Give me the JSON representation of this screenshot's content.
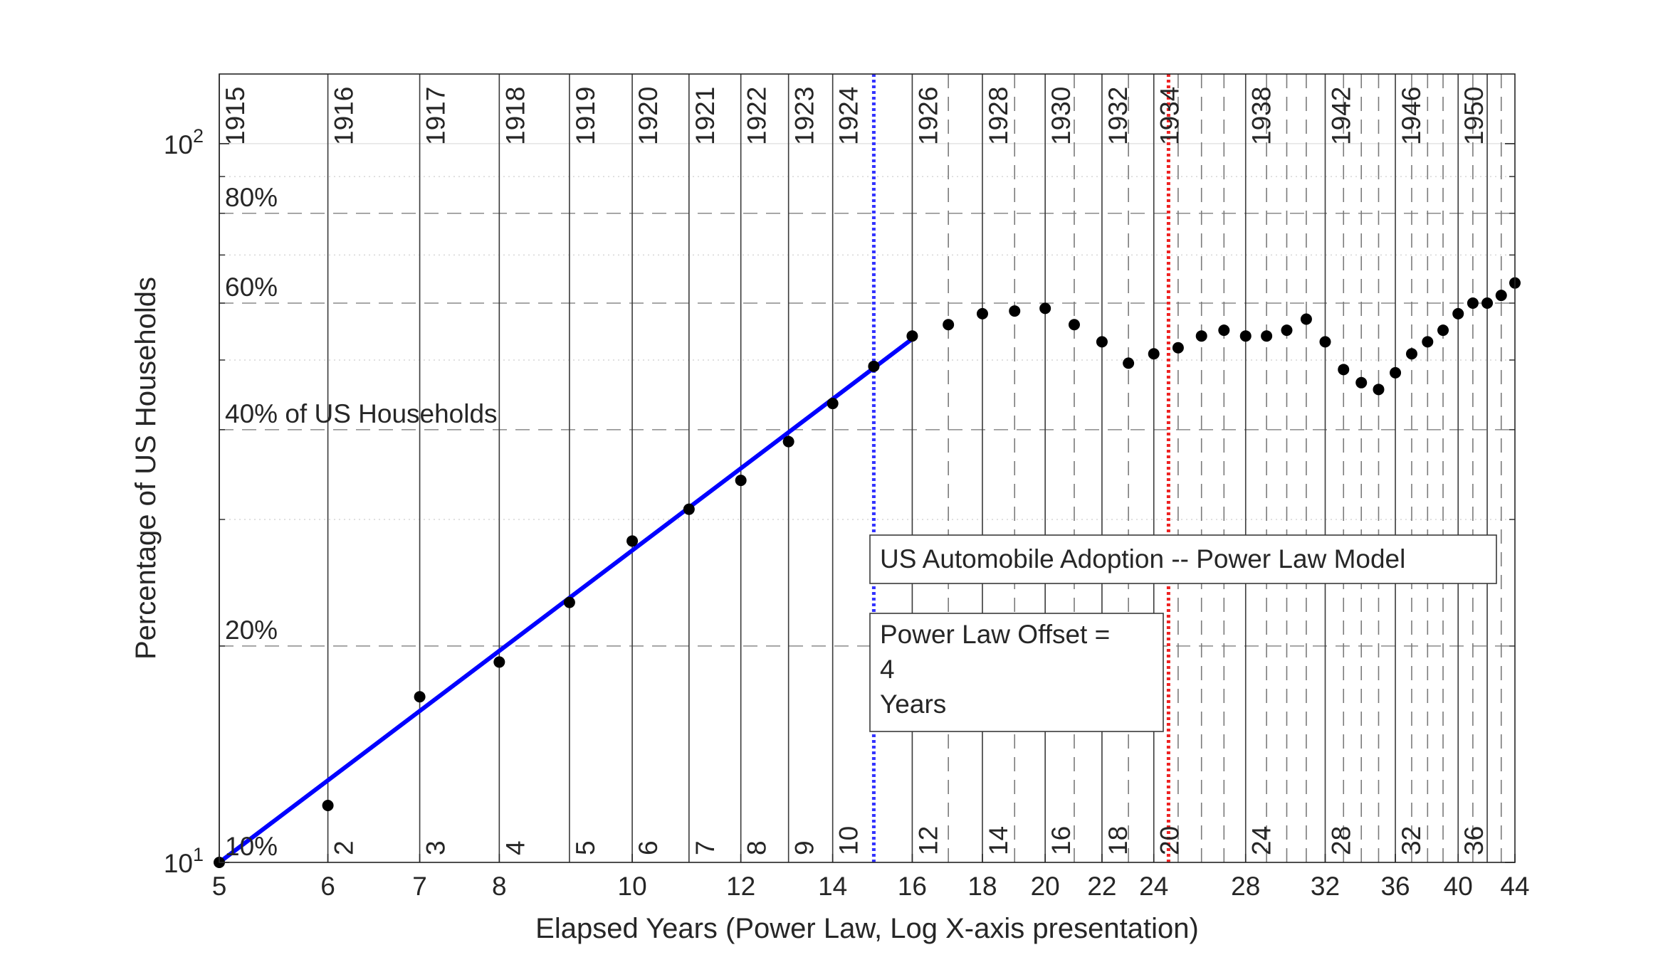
{
  "chart_data": {
    "type": "scatter",
    "title": "",
    "xlabel": "Elapsed Years (Power Law, Log X-axis presentation)",
    "ylabel": "Percentage of US Households",
    "x_scale": "log",
    "y_scale": "log",
    "xlim": [
      5,
      44
    ],
    "ylim": [
      10,
      125
    ],
    "grid": true,
    "x_ticks": [
      {
        "value": 5,
        "label": "5"
      },
      {
        "value": 6,
        "label": "6"
      },
      {
        "value": 7,
        "label": "7"
      },
      {
        "value": 8,
        "label": "8"
      },
      {
        "value": 10,
        "label": "10"
      },
      {
        "value": 12,
        "label": "12"
      },
      {
        "value": 14,
        "label": "14"
      },
      {
        "value": 16,
        "label": "16"
      },
      {
        "value": 18,
        "label": "18"
      },
      {
        "value": 20,
        "label": "20"
      },
      {
        "value": 22,
        "label": "22"
      },
      {
        "value": 24,
        "label": "24"
      },
      {
        "value": 28,
        "label": "28"
      },
      {
        "value": 32,
        "label": "32"
      },
      {
        "value": 36,
        "label": "36"
      },
      {
        "value": 40,
        "label": "40"
      },
      {
        "value": 44,
        "label": "44"
      }
    ],
    "y_ticks": [
      {
        "value": 10,
        "base": "10",
        "exp": "1"
      },
      {
        "value": 100,
        "base": "10",
        "exp": "2"
      }
    ],
    "pct_lines": [
      {
        "value": 10,
        "label": "10%"
      },
      {
        "value": 20,
        "label": "20%"
      },
      {
        "value": 40,
        "label": "40% of US Households"
      },
      {
        "value": 60,
        "label": "60%"
      },
      {
        "value": 80,
        "label": "80%"
      }
    ],
    "pct_lines_minor": [
      30,
      50,
      70,
      90
    ],
    "year_markers": [
      {
        "x": 5,
        "label": "1915",
        "solid": true
      },
      {
        "x": 6,
        "label": "1916",
        "solid": true
      },
      {
        "x": 7,
        "label": "1917",
        "solid": true
      },
      {
        "x": 8,
        "label": "1918",
        "solid": true
      },
      {
        "x": 9,
        "label": "1919",
        "solid": true
      },
      {
        "x": 10,
        "label": "1920",
        "solid": true
      },
      {
        "x": 11,
        "label": "1921",
        "solid": true
      },
      {
        "x": 12,
        "label": "1922",
        "solid": true
      },
      {
        "x": 13,
        "label": "1923",
        "solid": true
      },
      {
        "x": 14,
        "label": "1924",
        "solid": true
      },
      {
        "x": 16,
        "label": "1926",
        "solid": true
      },
      {
        "x": 18,
        "label": "1928",
        "solid": true
      },
      {
        "x": 20,
        "label": "1930",
        "solid": true
      },
      {
        "x": 22,
        "label": "1932",
        "solid": true
      },
      {
        "x": 24,
        "label": "1934",
        "solid": true
      },
      {
        "x": 28,
        "label": "1938",
        "solid": true
      },
      {
        "x": 32,
        "label": "1942",
        "solid": true
      },
      {
        "x": 36,
        "label": "1946",
        "solid": true
      },
      {
        "x": 40,
        "label": "1950",
        "solid": true
      },
      {
        "x": 42,
        "label": "",
        "solid": true
      },
      {
        "x": 17,
        "label": "",
        "solid": false
      },
      {
        "x": 19,
        "label": "",
        "solid": false
      },
      {
        "x": 21,
        "label": "",
        "solid": false
      },
      {
        "x": 23,
        "label": "",
        "solid": false
      },
      {
        "x": 25,
        "label": "",
        "solid": false
      },
      {
        "x": 26,
        "label": "",
        "solid": false
      },
      {
        "x": 27,
        "label": "",
        "solid": false
      },
      {
        "x": 29,
        "label": "",
        "solid": false
      },
      {
        "x": 30,
        "label": "",
        "solid": false
      },
      {
        "x": 31,
        "label": "",
        "solid": false
      },
      {
        "x": 33,
        "label": "",
        "solid": false
      },
      {
        "x": 34,
        "label": "",
        "solid": false
      },
      {
        "x": 35,
        "label": "",
        "solid": false
      },
      {
        "x": 37,
        "label": "",
        "solid": false
      },
      {
        "x": 38,
        "label": "",
        "solid": false
      },
      {
        "x": 39,
        "label": "",
        "solid": false
      },
      {
        "x": 41,
        "label": "",
        "solid": false
      },
      {
        "x": 43,
        "label": "",
        "solid": false
      }
    ],
    "elapsed_labels": [
      {
        "x": 6,
        "label": "2"
      },
      {
        "x": 7,
        "label": "3"
      },
      {
        "x": 8,
        "label": "4"
      },
      {
        "x": 9,
        "label": "5"
      },
      {
        "x": 10,
        "label": "6"
      },
      {
        "x": 11,
        "label": "7"
      },
      {
        "x": 12,
        "label": "8"
      },
      {
        "x": 13,
        "label": "9"
      },
      {
        "x": 14,
        "label": "10"
      },
      {
        "x": 16,
        "label": "12"
      },
      {
        "x": 18,
        "label": "14"
      },
      {
        "x": 20,
        "label": "16"
      },
      {
        "x": 22,
        "label": "18"
      },
      {
        "x": 24,
        "label": "20"
      },
      {
        "x": 28,
        "label": "24"
      },
      {
        "x": 32,
        "label": "28"
      },
      {
        "x": 36,
        "label": "32"
      },
      {
        "x": 40,
        "label": "36"
      }
    ],
    "series": [
      {
        "x": [
          5,
          6,
          7,
          8,
          9,
          10,
          11,
          12,
          13,
          14,
          15,
          16,
          17,
          18,
          19,
          20,
          21,
          22,
          23,
          24,
          25,
          26,
          27,
          28,
          29,
          30,
          31,
          32,
          33,
          34,
          35,
          36,
          37,
          38,
          39,
          40,
          41,
          42,
          43,
          44
        ],
        "values": [
          10.0,
          12.0,
          17.0,
          19.0,
          23.0,
          28.0,
          31.0,
          34.0,
          38.5,
          43.5,
          49.0,
          54.0,
          56.0,
          58.0,
          58.5,
          59.0,
          56.0,
          53.0,
          49.5,
          51.0,
          52.0,
          54.0,
          55.0,
          54.0,
          54.0,
          55.0,
          57.0,
          53.0,
          48.5,
          46.5,
          45.5,
          48.0,
          51.0,
          53.0,
          55.0,
          58.0,
          60.0,
          60.0,
          61.5,
          64.0
        ],
        "color": "#000000"
      }
    ],
    "fit_line": {
      "x": [
        5,
        16
      ],
      "y": [
        10,
        53.5
      ],
      "color": "#0000ff"
    },
    "offset_line": {
      "x": 15,
      "color": "#3333ff"
    },
    "inflection_line": {
      "x": 24.6,
      "color": "#ee2222"
    },
    "title_box": "US Automobile Adoption -- Power Law Model",
    "offset_box": {
      "line1": "Power Law Offset =",
      "value": "4",
      "unit": "Years"
    }
  }
}
